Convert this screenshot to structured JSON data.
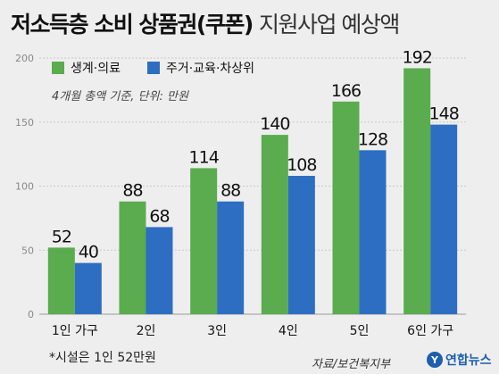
{
  "title": {
    "bold": "저소득층 소비 상품권(쿠폰)",
    "light": "지원사업 예상액"
  },
  "note": "4개월 총액 기준, 단위: 만원",
  "footnote": "*시설은 1인 52만원",
  "source": "자료/보건복지부",
  "brand": {
    "name": "연합뉴스",
    "mark": "Y"
  },
  "colors": {
    "series1": "#5aac4e",
    "series2": "#2d6ec2",
    "grid": "#c8c8c8"
  },
  "chart_data": {
    "type": "bar",
    "categories": [
      "1인 가구",
      "2인",
      "3인",
      "4인",
      "5인",
      "6인 가구"
    ],
    "series": [
      {
        "name": "생계·의료",
        "values": [
          52,
          88,
          114,
          140,
          166,
          192
        ]
      },
      {
        "name": "주거·교육·차상위",
        "values": [
          40,
          68,
          88,
          108,
          128,
          148
        ]
      }
    ],
    "ylim": [
      0,
      200
    ],
    "yticks": [
      0,
      50,
      100,
      150,
      200
    ],
    "grid": true,
    "legend": "top-left"
  }
}
